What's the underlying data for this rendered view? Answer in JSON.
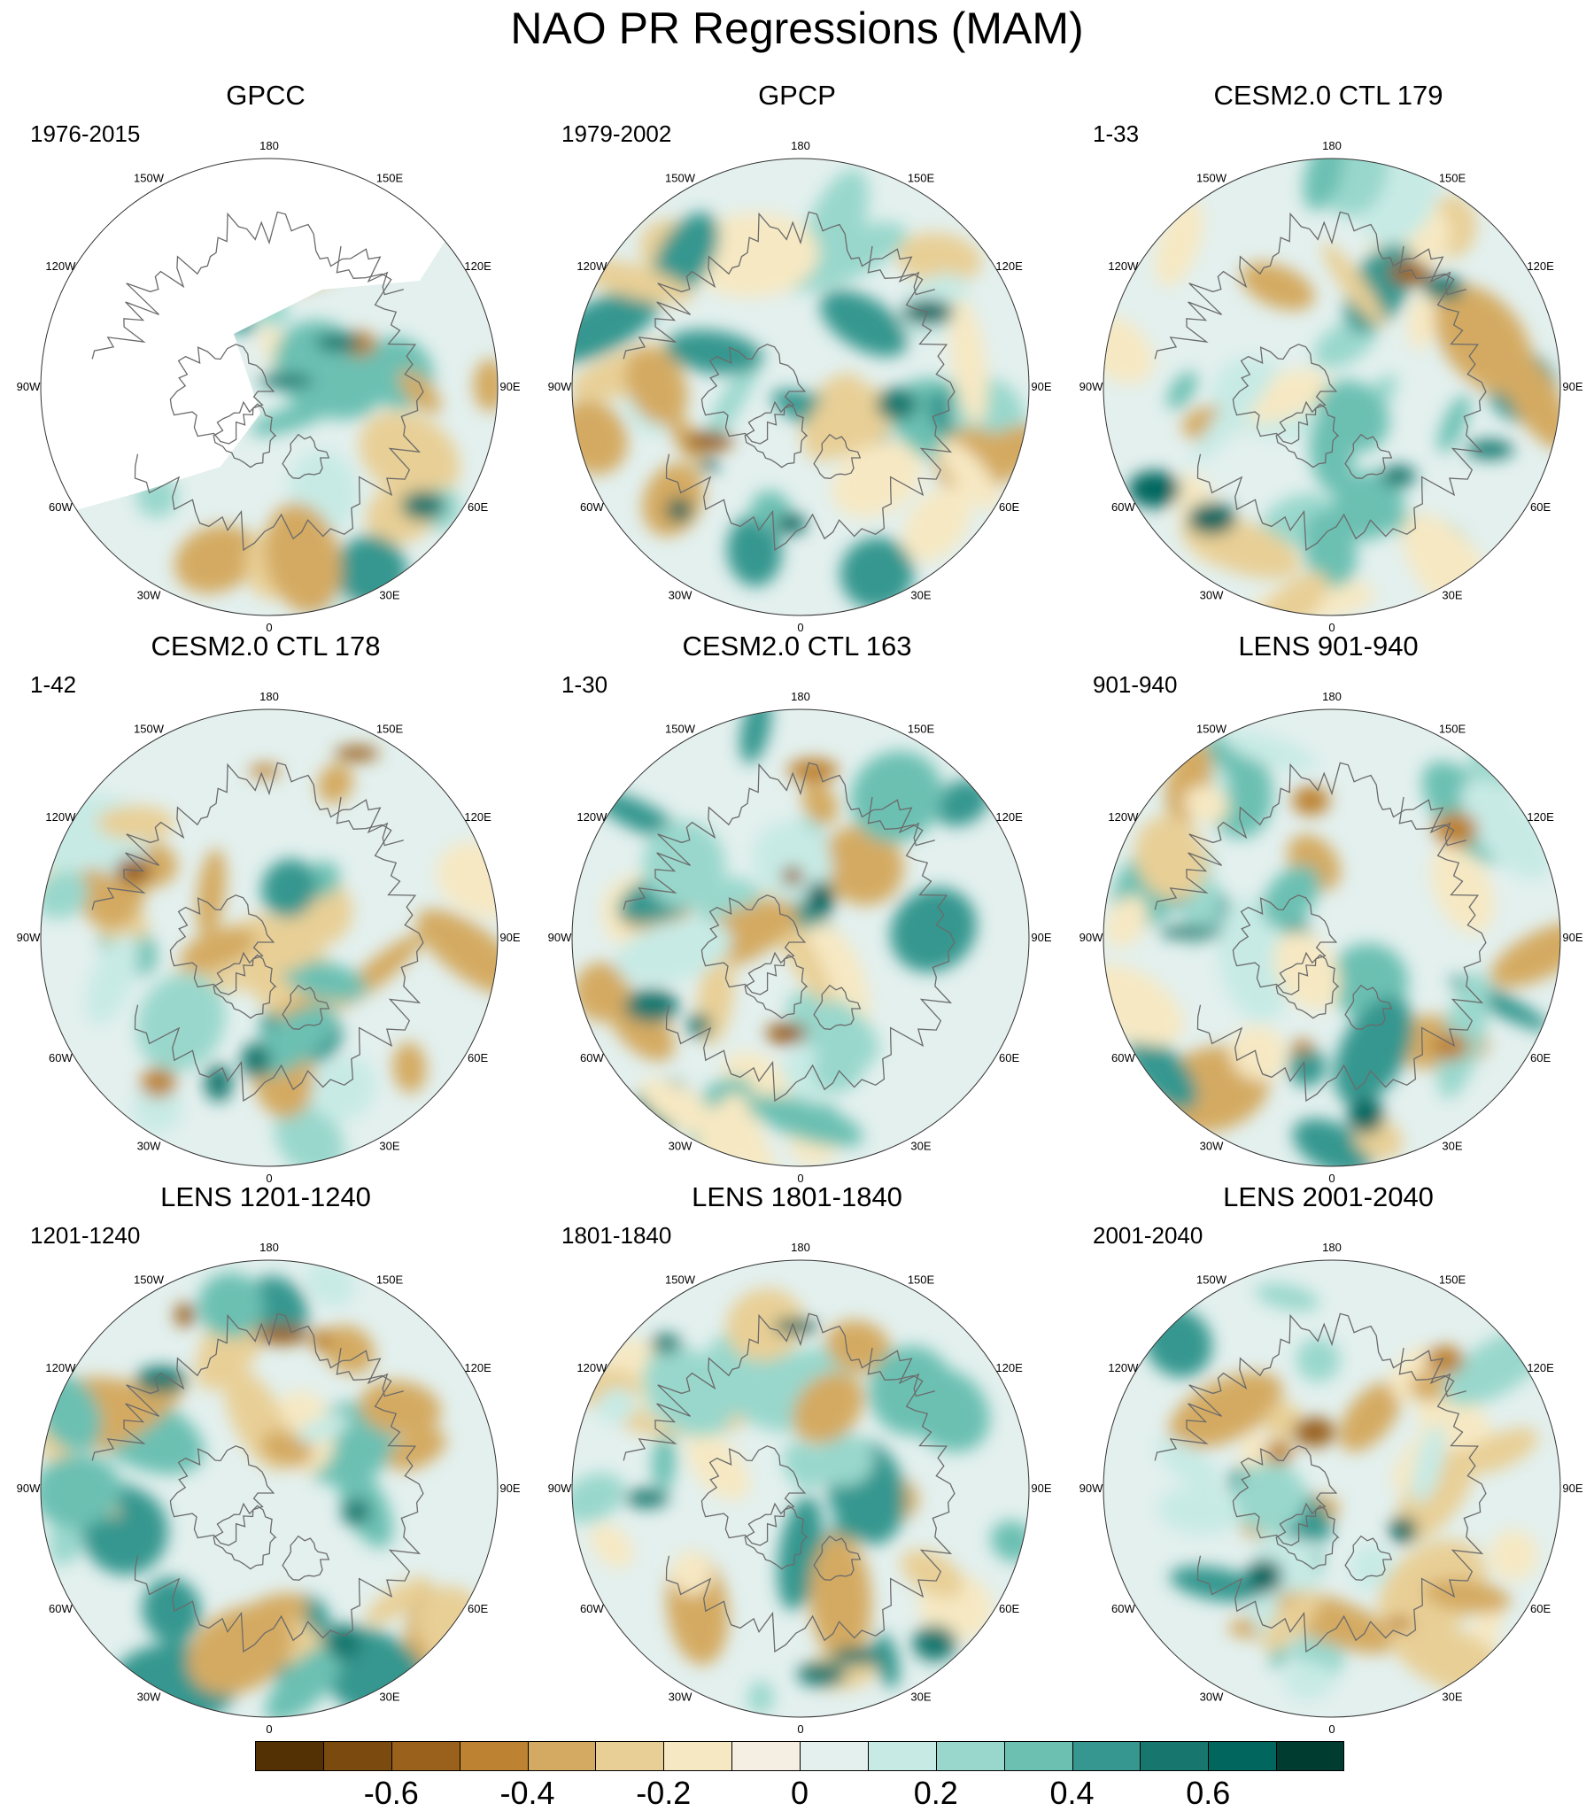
{
  "figure": {
    "title": "NAO PR Regressions (MAM)",
    "panels": [
      {
        "title": "GPCC",
        "period": "1976-2015",
        "missing_data": true
      },
      {
        "title": "GPCP",
        "period": "1979-2002"
      },
      {
        "title": "CESM2.0 CTL 179",
        "period": "1-33"
      },
      {
        "title": "CESM2.0 CTL 178",
        "period": "1-42"
      },
      {
        "title": "CESM2.0 CTL 163",
        "period": "1-30"
      },
      {
        "title": "LENS 901-940",
        "period": "901-940"
      },
      {
        "title": "LENS 1201-1240",
        "period": "1201-1240"
      },
      {
        "title": "LENS 1801-1840",
        "period": "1801-1840"
      },
      {
        "title": "LENS 2001-2040",
        "period": "2001-2040"
      }
    ],
    "longitude_labels": {
      "lon180": "180",
      "lon150e": "150E",
      "lon120e": "120E",
      "lon90e": "90E",
      "lon60e": "60E",
      "lon30e": "30E",
      "lon0": "0",
      "lon30w": "30W",
      "lon60w": "60W",
      "lon90w": "90W",
      "lon120w": "120W",
      "lon150w": "150W"
    },
    "colorbar": {
      "colors": [
        "#543005",
        "#7a4a0e",
        "#99611c",
        "#bd8232",
        "#d4aa62",
        "#e8cf96",
        "#f6e8c3",
        "#f4efe2",
        "#e3f0ee",
        "#c7eae5",
        "#99d7cc",
        "#6cc0b2",
        "#35978f",
        "#17776e",
        "#01665e",
        "#003c30"
      ],
      "ticks": [
        "-0.6",
        "-0.4",
        "-0.2",
        "0",
        "0.2",
        "0.4",
        "0.6"
      ],
      "tick_boundaries": [
        2,
        4,
        6,
        8,
        10,
        12,
        14
      ]
    }
  }
}
